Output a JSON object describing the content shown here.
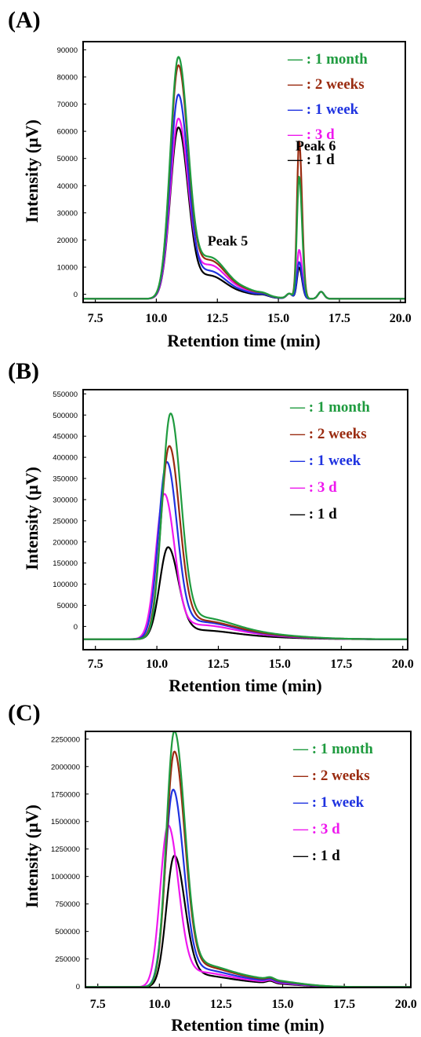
{
  "colors": {
    "1 month": "#1f9b3f",
    "2 weeks": "#9a2b10",
    "1 week": "#1f33e0",
    "3 d": "#ee18ee",
    "1 d": "#000000"
  },
  "chart_data": [
    {
      "type": "line",
      "panel_label": "(A)",
      "xlabel": "Retention time (min)",
      "ylabel": "Intensity (μV)",
      "xlim": [
        7.0,
        20.2
      ],
      "ylim": [
        -3000,
        93000
      ],
      "xticks": [
        "7.5",
        "10.0",
        "12.5",
        "15.0",
        "17.5",
        "20.0"
      ],
      "yticks": [
        "0",
        "10000",
        "20000",
        "30000",
        "40000",
        "50000",
        "60000",
        "70000",
        "80000",
        "90000"
      ],
      "legend": [
        "— : 1 month",
        "— : 2 weeks",
        "— : 1 week",
        "— : 3 d",
        "— : 1 d"
      ],
      "legend_position": "top-right",
      "annotations": [
        {
          "text": "Peak 5",
          "x": 12.1,
          "y": 18000
        },
        {
          "text": "Peak 6",
          "x": 15.7,
          "y": 53000
        }
      ],
      "series": [
        {
          "name": "1 month",
          "peak1_height": 88000,
          "shoulder_height": 13500,
          "peak2_height": 45000
        },
        {
          "name": "2 weeks",
          "peak1_height": 85000,
          "shoulder_height": 12500,
          "peak2_height": 58000
        },
        {
          "name": "1 week",
          "peak1_height": 74500,
          "shoulder_height": 9000,
          "peak2_height": 13500
        },
        {
          "name": "3 d",
          "peak1_height": 65500,
          "shoulder_height": 11000,
          "peak2_height": 18000
        },
        {
          "name": "1 d",
          "peak1_height": 62500,
          "shoulder_height": 7500,
          "peak2_height": 11500
        }
      ]
    },
    {
      "type": "line",
      "panel_label": "(B)",
      "xlabel": "Retention time (min)",
      "ylabel": "Intensity (μV)",
      "xlim": [
        7.0,
        20.2
      ],
      "ylim": [
        -55000,
        560000
      ],
      "xticks": [
        "7.5",
        "10.0",
        "12.5",
        "15.0",
        "17.5",
        "20.0"
      ],
      "yticks": [
        "0",
        "50000",
        "100000",
        "150000",
        "200000",
        "250000",
        "300000",
        "350000",
        "400000",
        "450000",
        "500000",
        "550000"
      ],
      "legend": [
        "— : 1 month",
        "— : 2 weeks",
        "— : 1 week",
        "— : 3 d",
        "— : 1 d"
      ],
      "legend_position": "top-right",
      "series": [
        {
          "name": "1 month",
          "peak_height": 522000,
          "peak_time": 10.55
        },
        {
          "name": "2 weeks",
          "peak_height": 448000,
          "peak_time": 10.5
        },
        {
          "name": "1 week",
          "peak_height": 413000,
          "peak_time": 10.4
        },
        {
          "name": "3 d",
          "peak_height": 340000,
          "peak_time": 10.3
        },
        {
          "name": "1 d",
          "peak_height": 214000,
          "peak_time": 10.45
        }
      ]
    },
    {
      "type": "line",
      "panel_label": "(C)",
      "xlabel": "Retention time (min)",
      "ylabel": "Intensity (μV)",
      "xlim": [
        7.0,
        20.2
      ],
      "ylim": [
        -10000,
        2320000
      ],
      "xticks": [
        "7.5",
        "10.0",
        "12.5",
        "15.0",
        "17.5",
        "20.0"
      ],
      "yticks": [
        "0",
        "250000",
        "500000",
        "750000",
        "1000000",
        "1250000",
        "1500000",
        "1750000",
        "2000000",
        "2250000"
      ],
      "legend": [
        "— : 1 month",
        "— : 2 weeks",
        "— : 1 week",
        "— : 3 d",
        "— : 1 d"
      ],
      "legend_position": "top-right",
      "series": [
        {
          "name": "1 month",
          "peak_height": 2260000,
          "peak_time": 10.6
        },
        {
          "name": "2 weeks",
          "peak_height": 2080000,
          "peak_time": 10.6
        },
        {
          "name": "1 week",
          "peak_height": 1750000,
          "peak_time": 10.55
        },
        {
          "name": "3 d",
          "peak_height": 1450000,
          "peak_time": 10.35
        },
        {
          "name": "1 d",
          "peak_height": 1160000,
          "peak_time": 10.6
        }
      ]
    }
  ]
}
